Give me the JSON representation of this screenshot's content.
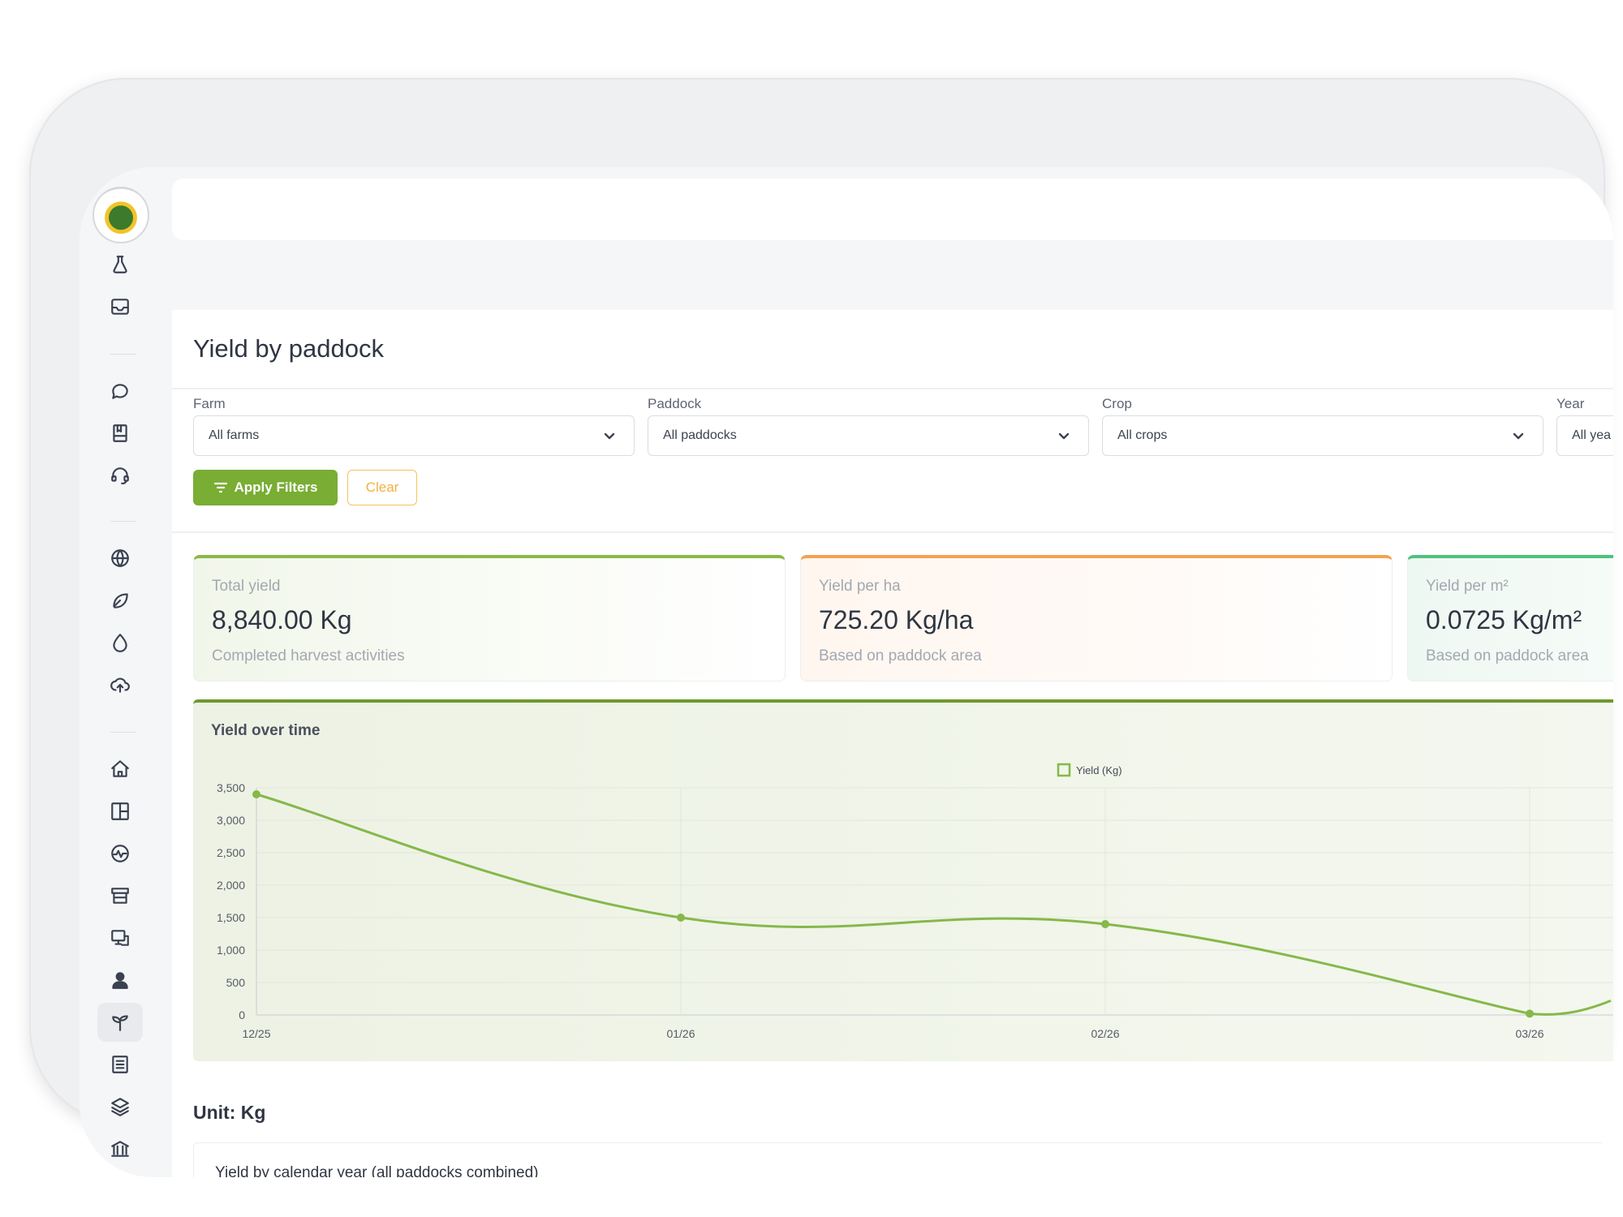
{
  "page": {
    "title": "Yield by paddock"
  },
  "filters": {
    "farm": {
      "label": "Farm",
      "value": "All farms"
    },
    "paddock": {
      "label": "Paddock",
      "value": "All paddocks"
    },
    "crop": {
      "label": "Crop",
      "value": "All crops"
    },
    "year": {
      "label": "Year",
      "value": "All yea"
    },
    "apply_label": "Apply Filters",
    "clear_label": "Clear"
  },
  "stats": {
    "total": {
      "label": "Total yield",
      "value": "8,840.00 Kg",
      "sub": "Completed harvest activities",
      "accent": "#8ab947"
    },
    "per_ha": {
      "label": "Yield per ha",
      "value": "725.20 Kg/ha",
      "sub": "Based on paddock area",
      "accent": "#f4a251"
    },
    "per_m2": {
      "label": "Yield per m²",
      "value": "0.0725 Kg/m²",
      "sub": "Based on paddock area",
      "accent": "#4cc37d"
    }
  },
  "chart": {
    "title": "Yield over time"
  },
  "chart_data": {
    "type": "line",
    "x": [
      "12/25",
      "01/26",
      "02/26",
      "03/26"
    ],
    "series": [
      {
        "name": "Yield (Kg)",
        "values": [
          3400,
          1500,
          1400,
          20
        ],
        "color": "#86b84a"
      }
    ],
    "yticks": [
      0,
      500,
      1000,
      1500,
      2000,
      2500,
      3000,
      3500
    ],
    "ylim": [
      0,
      3500
    ],
    "grid": true,
    "legend": "top-center"
  },
  "unit": {
    "label": "Unit: Kg"
  },
  "sub_section": {
    "title": "Yield by calendar year (all paddocks combined)"
  },
  "sidebar": {
    "icons": [
      "flask-icon",
      "inbox-icon",
      "chat-icon",
      "book-icon",
      "support-icon",
      "globe-icon",
      "leaf-icon",
      "droplet-icon",
      "cloud-upload-icon",
      "home-icon",
      "layout-icon",
      "activity-icon",
      "archive-icon",
      "monitor-icon",
      "user-icon",
      "sprout-icon",
      "list-icon",
      "layers-icon",
      "bank-icon"
    ]
  },
  "colors": {
    "primary": "#79ad34",
    "clear": "#f0b23e"
  }
}
